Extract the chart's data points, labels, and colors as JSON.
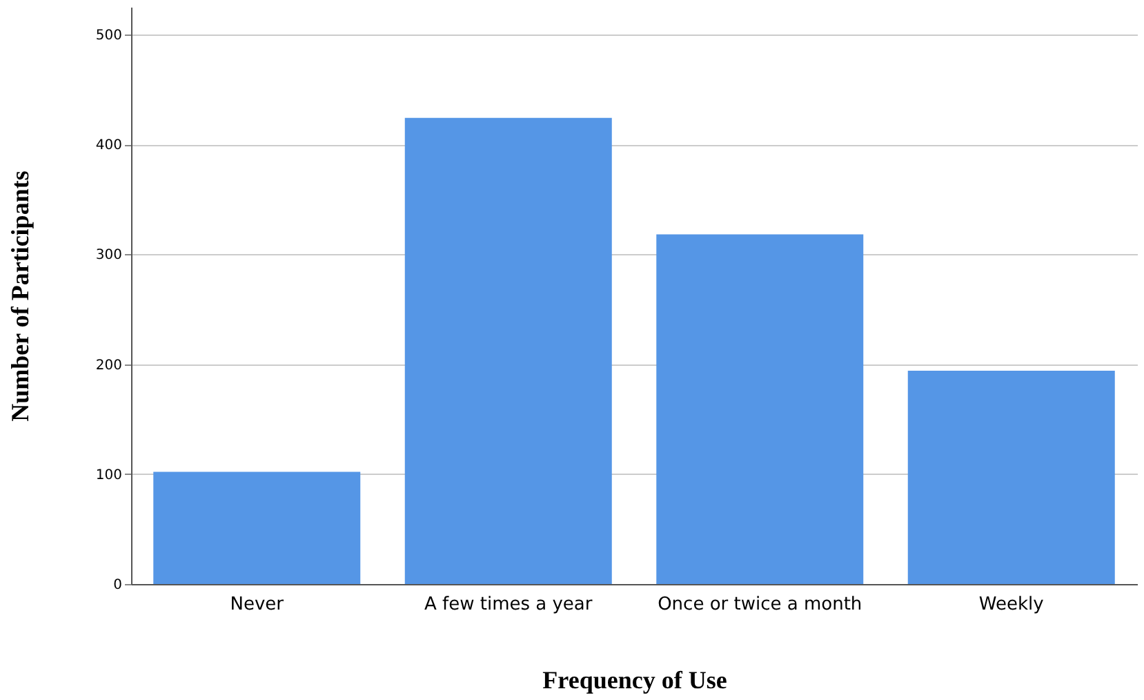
{
  "chart_data": {
    "type": "bar",
    "xlabel": "Frequency of Use",
    "ylabel": "Number of Participants",
    "categories": [
      "Never",
      "A few times a year",
      "Once or twice a month",
      "Weekly"
    ],
    "values": [
      102,
      424,
      318,
      194
    ],
    "color": "#5596e6",
    "ylim": [
      0,
      525
    ],
    "yticks": [
      0,
      100,
      200,
      300,
      400,
      500
    ],
    "grid": "y"
  }
}
